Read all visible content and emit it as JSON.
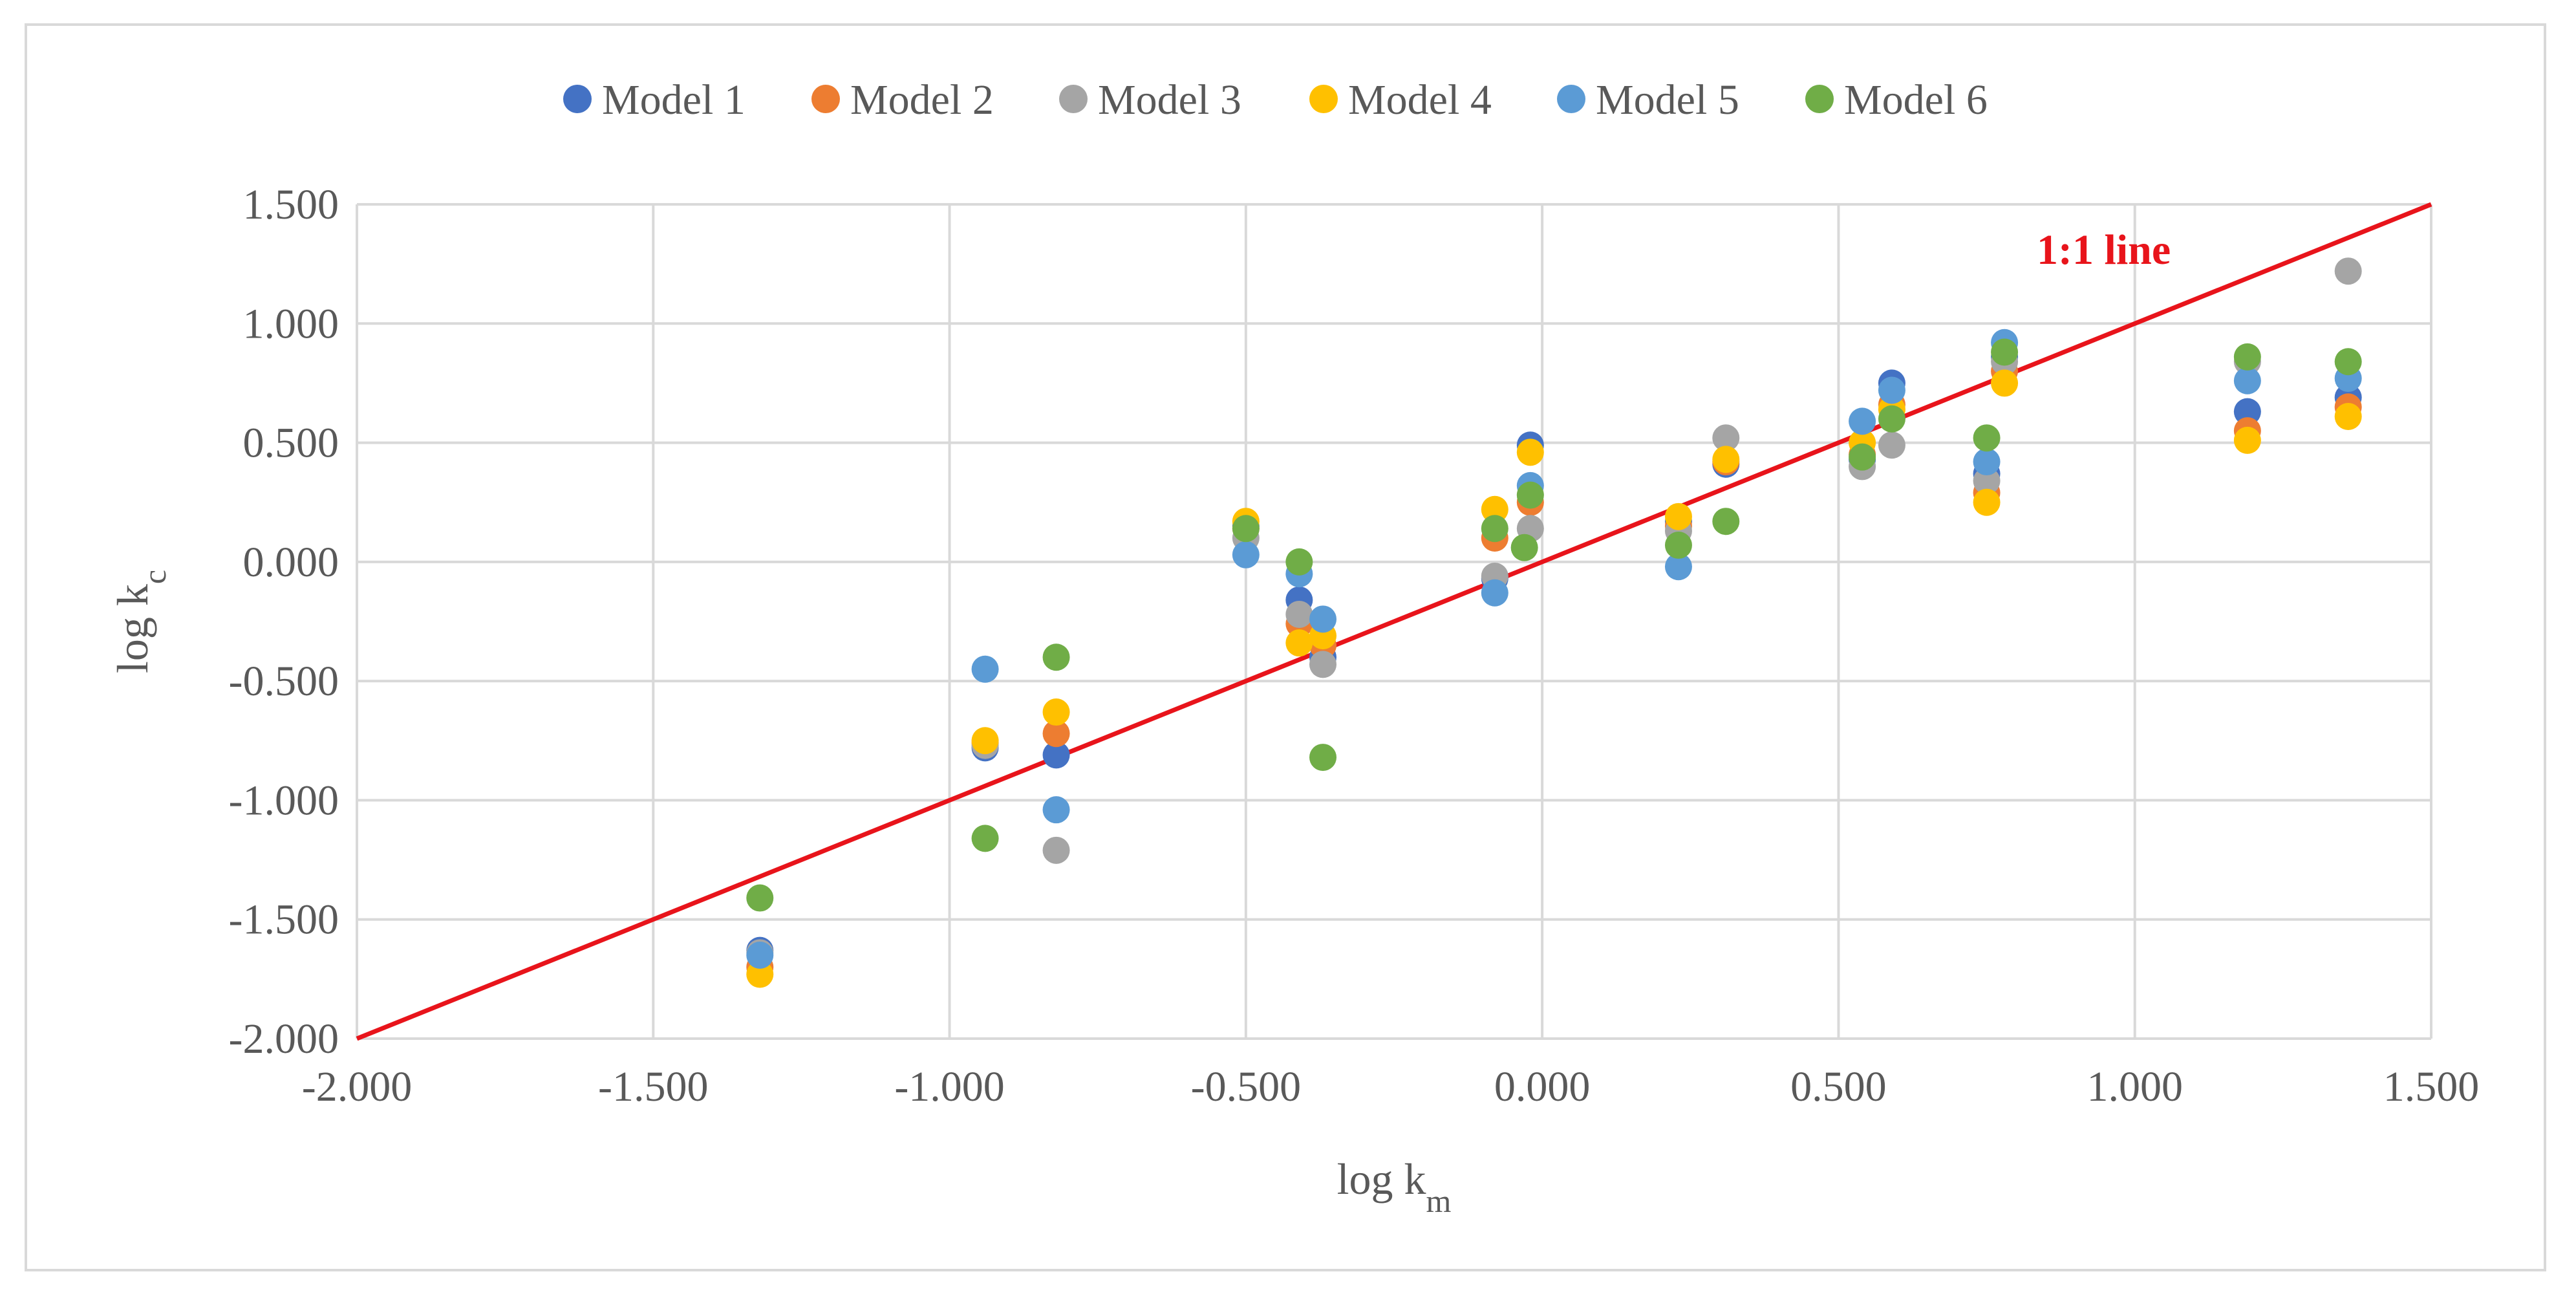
{
  "chart_data": {
    "type": "scatter",
    "title": "",
    "xlabel": {
      "base": "log k",
      "sub": "m"
    },
    "ylabel": {
      "base": "log k",
      "sub": "c"
    },
    "xlim": [
      -2.0,
      1.5
    ],
    "ylim": [
      -2.0,
      1.5
    ],
    "x_ticks": [
      "-2.000",
      "-1.500",
      "-1.000",
      "-0.500",
      "0.000",
      "0.500",
      "1.000",
      "1.500"
    ],
    "y_ticks": [
      "1.500",
      "1.000",
      "0.500",
      "0.000",
      "-0.500",
      "-1.000",
      "-1.500",
      "-2.000"
    ],
    "x_tick_values": [
      -2.0,
      -1.5,
      -1.0,
      -0.5,
      0.0,
      0.5,
      1.0,
      1.5
    ],
    "y_tick_values": [
      1.5,
      1.0,
      0.5,
      0.0,
      -0.5,
      -1.0,
      -1.5,
      -2.0
    ],
    "grid": true,
    "legend_position": "top-center",
    "reference_line": {
      "label": "1:1 line",
      "color": "#e8141b",
      "from": [
        -2.0,
        -2.0
      ],
      "to": [
        1.5,
        1.5
      ]
    },
    "series": [
      {
        "name": "Model 1",
        "color": "#4472c4",
        "points": [
          [
            -1.32,
            -1.63
          ],
          [
            -0.94,
            -0.78
          ],
          [
            -0.82,
            -0.81
          ],
          [
            -0.5,
            0.15
          ],
          [
            -0.41,
            -0.16
          ],
          [
            -0.37,
            -0.4
          ],
          [
            -0.08,
            -0.07
          ],
          [
            -0.02,
            0.49
          ],
          [
            0.23,
            0.17
          ],
          [
            0.31,
            0.41
          ],
          [
            0.54,
            0.43
          ],
          [
            0.59,
            0.75
          ],
          [
            0.75,
            0.37
          ],
          [
            0.78,
            0.86
          ],
          [
            1.19,
            0.63
          ],
          [
            1.36,
            0.69
          ]
        ]
      },
      {
        "name": "Model 2",
        "color": "#ed7d31",
        "points": [
          [
            -1.32,
            -1.7
          ],
          [
            -0.94,
            -0.76
          ],
          [
            -0.82,
            -0.72
          ],
          [
            -0.5,
            0.14
          ],
          [
            -0.41,
            -0.26
          ],
          [
            -0.37,
            -0.35
          ],
          [
            -0.08,
            0.1
          ],
          [
            -0.02,
            0.25
          ],
          [
            0.23,
            0.15
          ],
          [
            0.31,
            0.42
          ],
          [
            0.54,
            0.45
          ],
          [
            0.59,
            0.66
          ],
          [
            0.75,
            0.29
          ],
          [
            0.78,
            0.8
          ],
          [
            1.19,
            0.55
          ],
          [
            1.36,
            0.65
          ]
        ]
      },
      {
        "name": "Model 3",
        "color": "#a5a5a5",
        "points": [
          [
            -1.32,
            -1.64
          ],
          [
            -0.94,
            -0.77
          ],
          [
            -0.82,
            -1.21
          ],
          [
            -0.5,
            0.1
          ],
          [
            -0.41,
            -0.22
          ],
          [
            -0.37,
            -0.43
          ],
          [
            -0.08,
            -0.06
          ],
          [
            -0.02,
            0.14
          ],
          [
            0.23,
            0.13
          ],
          [
            0.31,
            0.52
          ],
          [
            0.54,
            0.4
          ],
          [
            0.59,
            0.49
          ],
          [
            0.75,
            0.34
          ],
          [
            0.78,
            0.84
          ],
          [
            1.19,
            0.84
          ],
          [
            1.36,
            1.22
          ]
        ]
      },
      {
        "name": "Model 4",
        "color": "#ffc000",
        "points": [
          [
            -1.32,
            -1.73
          ],
          [
            -0.94,
            -0.75
          ],
          [
            -0.82,
            -0.63
          ],
          [
            -0.5,
            0.17
          ],
          [
            -0.41,
            -0.34
          ],
          [
            -0.37,
            -0.31
          ],
          [
            -0.08,
            0.22
          ],
          [
            -0.02,
            0.46
          ],
          [
            0.23,
            0.19
          ],
          [
            0.31,
            0.43
          ],
          [
            0.54,
            0.5
          ],
          [
            0.59,
            0.64
          ],
          [
            0.75,
            0.25
          ],
          [
            0.78,
            0.75
          ],
          [
            1.19,
            0.51
          ],
          [
            1.36,
            0.61
          ]
        ]
      },
      {
        "name": "Model 5",
        "color": "#5b9bd5",
        "points": [
          [
            -1.32,
            -1.65
          ],
          [
            -0.94,
            -0.45
          ],
          [
            -0.82,
            -1.04
          ],
          [
            -0.5,
            0.03
          ],
          [
            -0.41,
            -0.05
          ],
          [
            -0.37,
            -0.24
          ],
          [
            -0.08,
            -0.13
          ],
          [
            -0.02,
            0.32
          ],
          [
            0.23,
            -0.02
          ],
          [
            0.54,
            0.59
          ],
          [
            0.59,
            0.72
          ],
          [
            0.75,
            0.42
          ],
          [
            0.78,
            0.92
          ],
          [
            1.19,
            0.76
          ],
          [
            1.36,
            0.77
          ]
        ]
      },
      {
        "name": "Model 6",
        "color": "#70ad47",
        "points": [
          [
            -1.32,
            -1.41
          ],
          [
            -0.94,
            -1.16
          ],
          [
            -0.82,
            -0.4
          ],
          [
            -0.5,
            0.14
          ],
          [
            -0.41,
            0.0
          ],
          [
            -0.37,
            -0.82
          ],
          [
            -0.08,
            0.14
          ],
          [
            -0.02,
            0.28
          ],
          [
            -0.03,
            0.06
          ],
          [
            0.23,
            0.07
          ],
          [
            0.31,
            0.17
          ],
          [
            0.54,
            0.44
          ],
          [
            0.59,
            0.6
          ],
          [
            0.75,
            0.52
          ],
          [
            0.78,
            0.88
          ],
          [
            1.19,
            0.86
          ],
          [
            1.36,
            0.84
          ]
        ]
      }
    ]
  }
}
